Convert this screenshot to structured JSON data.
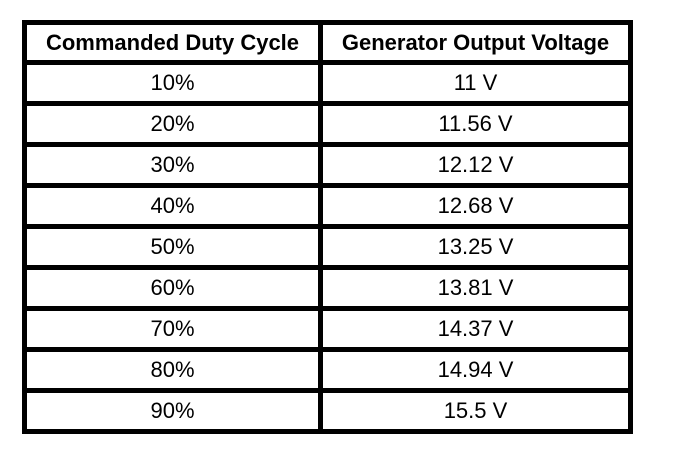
{
  "page": {
    "background_color": "#ffffff",
    "border_color": "#000000",
    "text_color": "#000000"
  },
  "table": {
    "columns": [
      "Commanded Duty Cycle",
      "Generator Output Voltage"
    ],
    "rows": [
      [
        "10%",
        "11 V"
      ],
      [
        "20%",
        "11.56 V"
      ],
      [
        "30%",
        "12.12 V"
      ],
      [
        "40%",
        "12.68 V"
      ],
      [
        "50%",
        "13.25 V"
      ],
      [
        "60%",
        "13.81 V"
      ],
      [
        "70%",
        "14.37 V"
      ],
      [
        "80%",
        "14.94 V"
      ],
      [
        "90%",
        "15.5 V"
      ]
    ]
  },
  "chart_data": {
    "type": "table",
    "title": "",
    "columns": [
      "Commanded Duty Cycle",
      "Generator Output Voltage"
    ],
    "rows": [
      [
        "10%",
        "11 V"
      ],
      [
        "20%",
        "11.56 V"
      ],
      [
        "30%",
        "12.12 V"
      ],
      [
        "40%",
        "12.68 V"
      ],
      [
        "50%",
        "13.25 V"
      ],
      [
        "60%",
        "13.81 V"
      ],
      [
        "70%",
        "14.37 V"
      ],
      [
        "80%",
        "14.94 V"
      ],
      [
        "90%",
        "15.5 V"
      ]
    ],
    "duty_cycle_percent": [
      10,
      20,
      30,
      40,
      50,
      60,
      70,
      80,
      90
    ],
    "output_voltage_v": [
      11,
      11.56,
      12.12,
      12.68,
      13.25,
      13.81,
      14.37,
      14.94,
      15.5
    ]
  }
}
